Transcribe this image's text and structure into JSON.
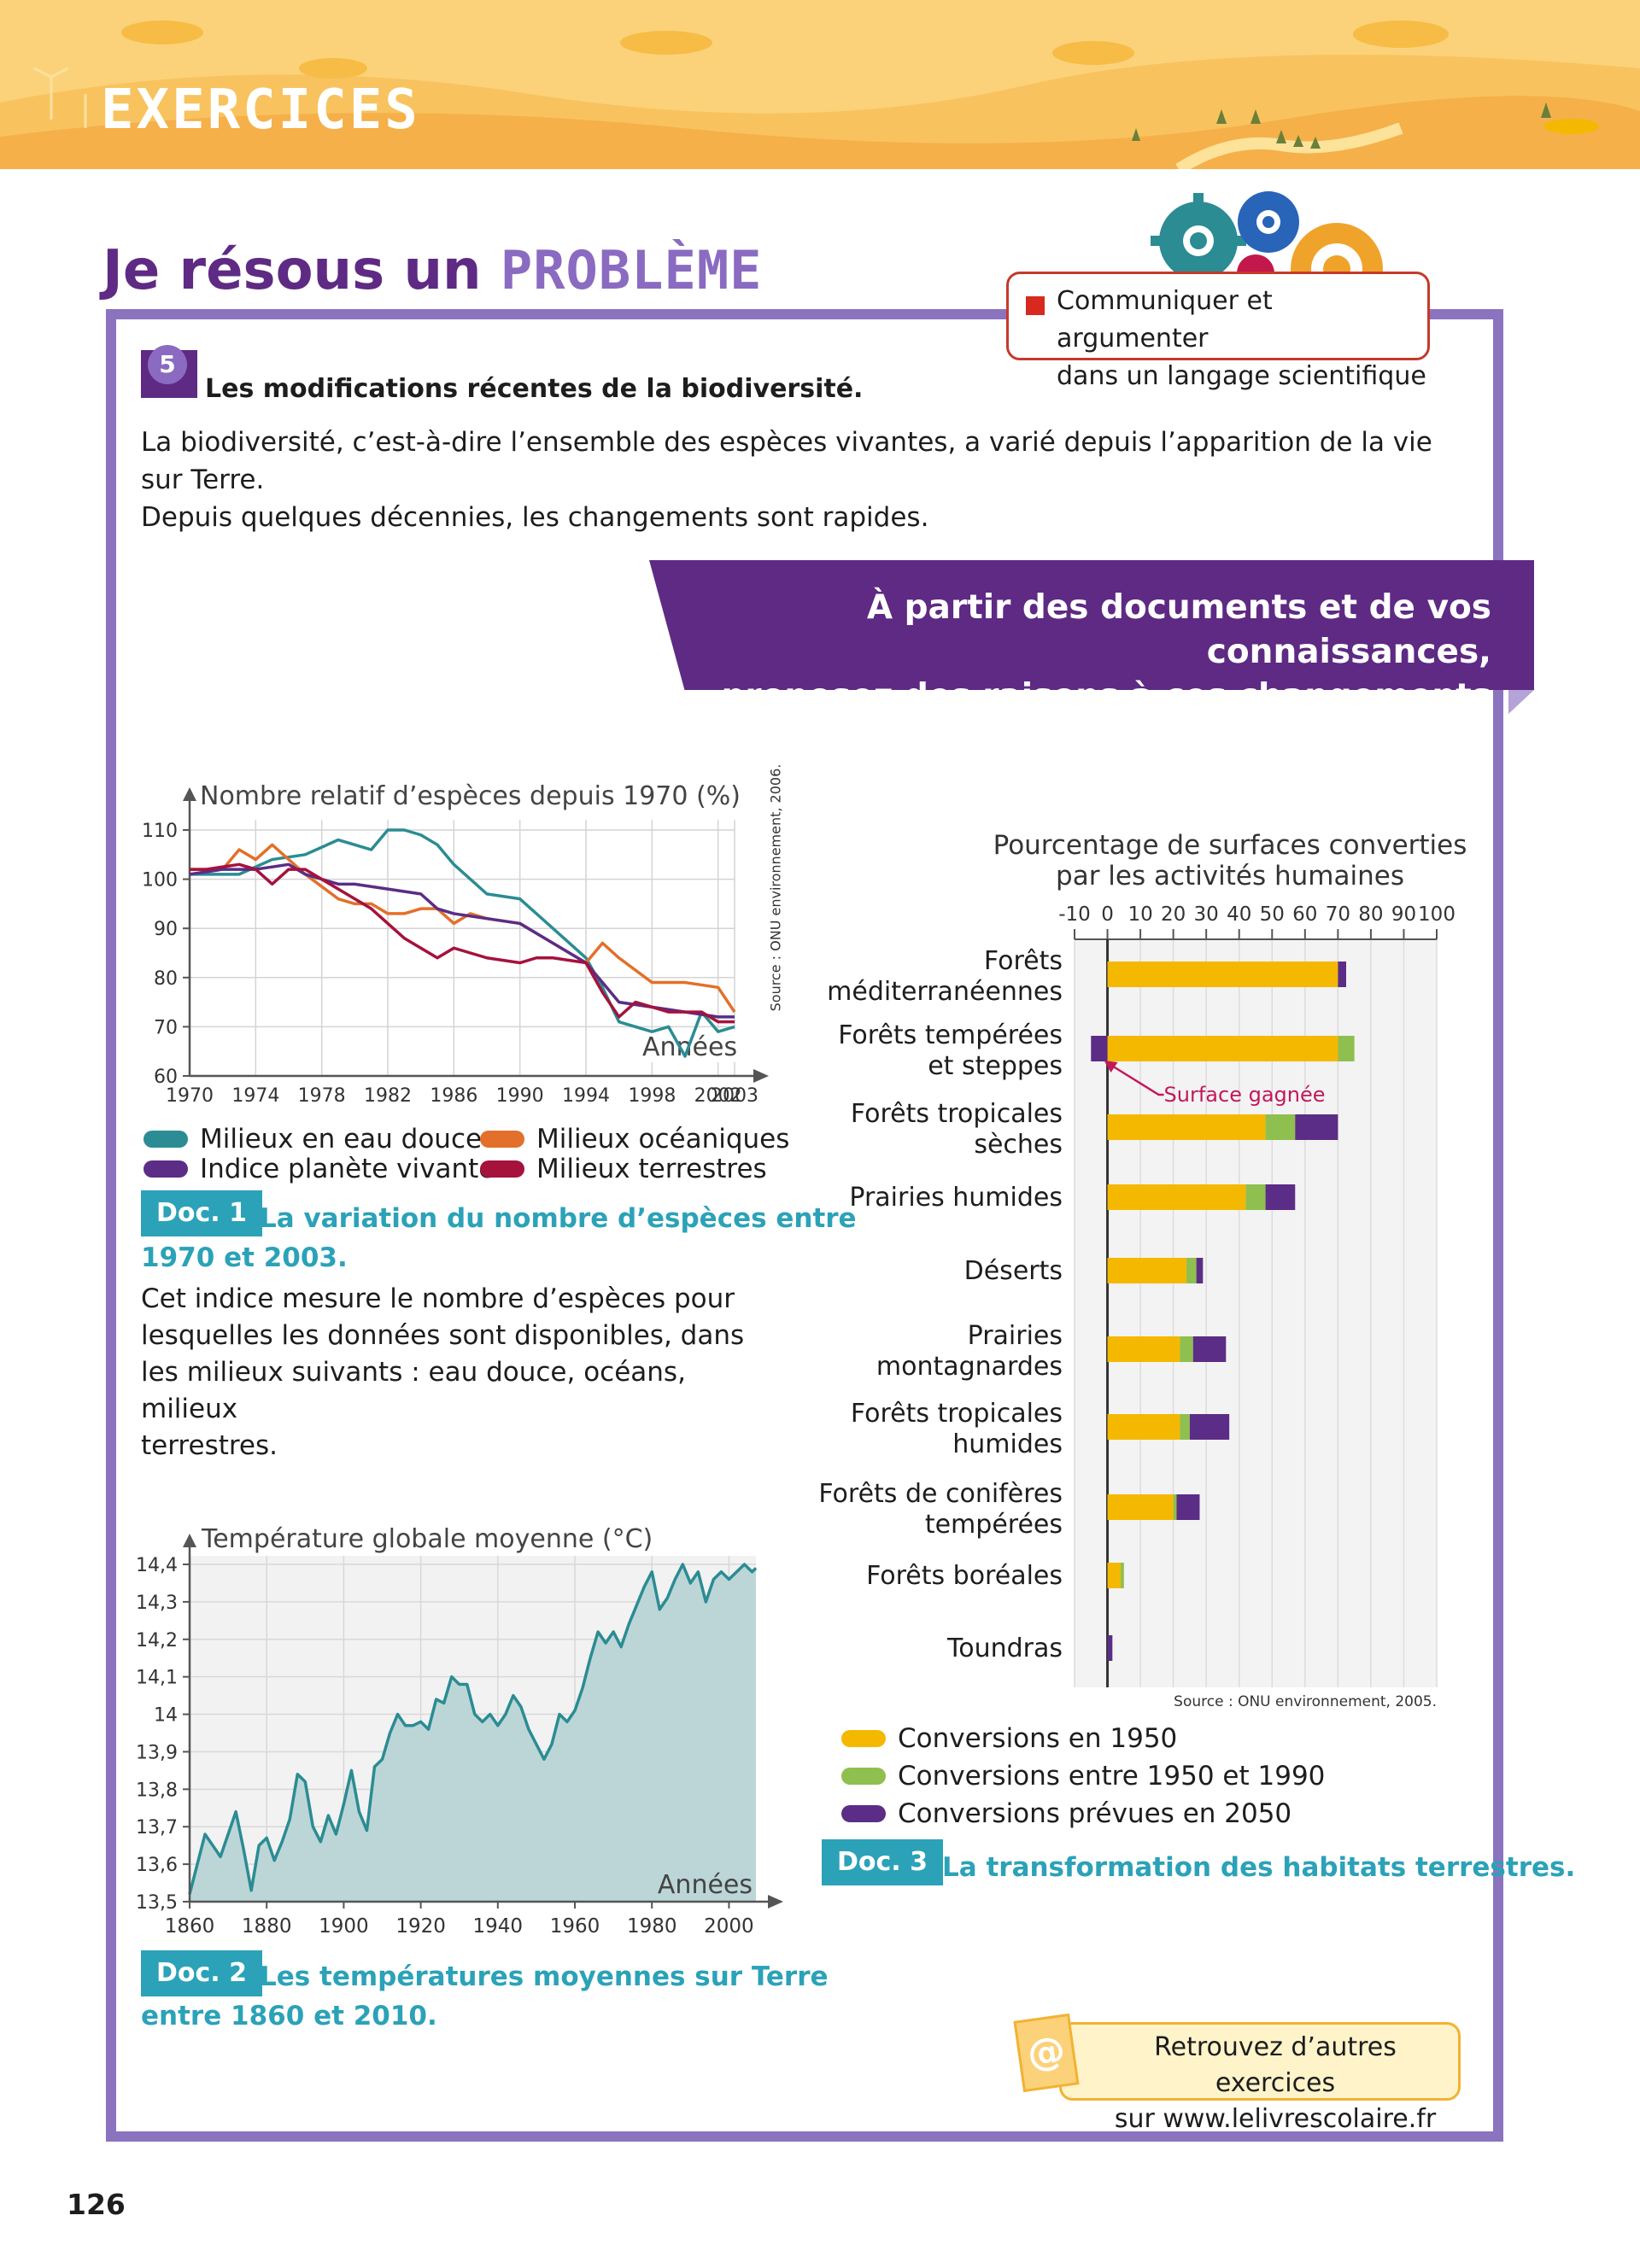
{
  "header": {
    "section": "EXERCICES"
  },
  "page_title": {
    "prefix": "Je résous un",
    "highlight": "PROBLÈME"
  },
  "skill": {
    "line1": "Communiquer et argumenter",
    "line2": "dans un langage scientifique"
  },
  "exercise": {
    "number": "5",
    "title": "Les modifications récentes de la biodiversité.",
    "intro_line1": "La biodiversité, c’est-à-dire l’ensemble des espèces vivantes, a varié depuis l’apparition de la vie sur Terre.",
    "intro_line2": "Depuis quelques décennies, les changements sont rapides."
  },
  "task": {
    "line1": "À partir des documents et de vos connaissances,",
    "line2": "proposez des raisons à ces changements récents."
  },
  "doc1": {
    "label": "Doc. 1",
    "title_line1": "La variation du nombre d’espèces entre",
    "title_line2": "1970 et 2003.",
    "text_lines": [
      "Cet indice mesure le nombre d’espèces pour",
      "lesquelles les données sont disponibles, dans",
      "les milieux suivants : eau douce, océans, milieux",
      "terrestres."
    ],
    "source": "Source : ONU environnement, 2006."
  },
  "doc2": {
    "label": "Doc. 2",
    "title_line1": "Les températures moyennes sur Terre",
    "title_line2": "entre 1860 et 2010."
  },
  "doc3": {
    "label": "Doc. 3",
    "title": "La transformation des habitats terrestres.",
    "source": "Source : ONU environnement, 2005.",
    "annotation": "Surface gagnée"
  },
  "web": {
    "line1": "Retrouvez d’autres exercices",
    "line2": "sur www.lelivrescolaire.fr",
    "icon": "at-icon"
  },
  "page_number": "126",
  "chart_data": [
    {
      "type": "line",
      "ylabel": "Nombre relatif d’espèces depuis 1970 (%)",
      "xlabel": "Années",
      "x_ticks": [
        "1970",
        "1974",
        "1978",
        "1982",
        "1986",
        "1990",
        "1994",
        "1998",
        "2002",
        "2003"
      ],
      "y_ticks": [
        "60",
        "70",
        "80",
        "90",
        "100",
        "110"
      ],
      "ylim": [
        60,
        110
      ],
      "grid": true,
      "legend_position": "bottom",
      "series": [
        {
          "name": "Milieux en eau douce",
          "color": "#2b8c93",
          "x": [
            1970,
            1973,
            1975,
            1977,
            1979,
            1981,
            1982,
            1983,
            1984,
            1985,
            1986,
            1988,
            1990,
            1992,
            1994,
            1995,
            1996,
            1998,
            1999,
            2000,
            2001,
            2002,
            2003
          ],
          "y": [
            101,
            101,
            104,
            105,
            108,
            106,
            110,
            110,
            109,
            107,
            103,
            97,
            96,
            90,
            84,
            78,
            71,
            69,
            70,
            64,
            73,
            69,
            70
          ]
        },
        {
          "name": "Milieux océaniques",
          "color": "#e2702a",
          "x": [
            1970,
            1972,
            1973,
            1974,
            1975,
            1976,
            1977,
            1979,
            1980,
            1981,
            1982,
            1983,
            1984,
            1985,
            1986,
            1987,
            1988,
            1990,
            1992,
            1994,
            1995,
            1996,
            1998,
            2000,
            2002,
            2003
          ],
          "y": [
            102,
            102,
            106,
            104,
            107,
            104,
            101,
            96,
            95,
            95,
            93,
            93,
            94,
            94,
            91,
            93,
            92,
            91,
            87,
            83,
            87,
            84,
            79,
            79,
            78,
            73
          ]
        },
        {
          "name": "Indice planète vivante",
          "color": "#5b2d86",
          "x": [
            1970,
            1972,
            1974,
            1976,
            1977,
            1979,
            1980,
            1982,
            1984,
            1985,
            1986,
            1988,
            1990,
            1992,
            1994,
            1995,
            1996,
            1998,
            2000,
            2002,
            2003
          ],
          "y": [
            101,
            102,
            102,
            103,
            101,
            99,
            99,
            98,
            97,
            94,
            93,
            92,
            91,
            87,
            83,
            79,
            75,
            74,
            73,
            72,
            72
          ]
        },
        {
          "name": "Milieux terrestres",
          "color": "#a5123c",
          "x": [
            1970,
            1971,
            1973,
            1974,
            1975,
            1976,
            1977,
            1979,
            1981,
            1983,
            1985,
            1986,
            1988,
            1990,
            1991,
            1992,
            1994,
            1995,
            1996,
            1997,
            1998,
            1999,
            2001,
            2002,
            2003
          ],
          "y": [
            102,
            102,
            103,
            102,
            99,
            102,
            102,
            98,
            94,
            88,
            84,
            86,
            84,
            83,
            84,
            84,
            83,
            77,
            72,
            75,
            74,
            73,
            73,
            71,
            71
          ]
        }
      ]
    },
    {
      "type": "area",
      "ylabel": "Température globale moyenne (°C)",
      "xlabel": "Années",
      "x_ticks": [
        "1860",
        "1880",
        "1900",
        "1920",
        "1940",
        "1960",
        "1980",
        "2000"
      ],
      "y_ticks": [
        "13,5",
        "13,6",
        "13,7",
        "13,8",
        "13,9",
        "14",
        "14,1",
        "14,2",
        "14,3",
        "14,4"
      ],
      "ylim": [
        13.5,
        14.4
      ],
      "xlim": [
        1860,
        2007
      ],
      "grid": true,
      "series": [
        {
          "color": "#2b8c93",
          "x": [
            1860,
            1862,
            1864,
            1866,
            1868,
            1870,
            1872,
            1874,
            1876,
            1878,
            1880,
            1882,
            1884,
            1886,
            1888,
            1890,
            1892,
            1894,
            1896,
            1898,
            1900,
            1902,
            1904,
            1906,
            1908,
            1910,
            1912,
            1914,
            1916,
            1918,
            1920,
            1922,
            1924,
            1926,
            1928,
            1930,
            1932,
            1934,
            1936,
            1938,
            1940,
            1942,
            1944,
            1946,
            1948,
            1950,
            1952,
            1954,
            1956,
            1958,
            1960,
            1962,
            1964,
            1966,
            1968,
            1970,
            1972,
            1974,
            1976,
            1978,
            1980,
            1982,
            1984,
            1986,
            1988,
            1990,
            1992,
            1994,
            1996,
            1998,
            2000,
            2002,
            2004,
            2006,
            2007
          ],
          "y": [
            13.52,
            13.6,
            13.68,
            13.65,
            13.62,
            13.68,
            13.74,
            13.64,
            13.53,
            13.65,
            13.67,
            13.61,
            13.66,
            13.72,
            13.84,
            13.82,
            13.7,
            13.66,
            13.73,
            13.68,
            13.76,
            13.85,
            13.74,
            13.69,
            13.86,
            13.88,
            13.95,
            14.0,
            13.97,
            13.97,
            13.98,
            13.96,
            14.04,
            14.03,
            14.1,
            14.08,
            14.08,
            14.0,
            13.98,
            14.0,
            13.97,
            14.0,
            14.05,
            14.02,
            13.96,
            13.92,
            13.88,
            13.92,
            14.0,
            13.98,
            14.01,
            14.07,
            14.15,
            14.22,
            14.19,
            14.22,
            14.18,
            14.24,
            14.29,
            14.34,
            14.38,
            14.28,
            14.31,
            14.36,
            14.4,
            14.35,
            14.38,
            14.3,
            14.36,
            14.38,
            14.36,
            14.38,
            14.4,
            14.38,
            14.39
          ]
        }
      ]
    },
    {
      "type": "bar",
      "orientation": "horizontal",
      "stacked": true,
      "title_line1": "Pourcentage de surfaces converties",
      "title_line2": "par les activités humaines",
      "x_ticks": [
        "-10",
        "0",
        "10",
        "20",
        "30",
        "40",
        "50",
        "60",
        "70",
        "80",
        "90",
        "100"
      ],
      "xlim": [
        -10,
        100
      ],
      "grid": true,
      "legend_position": "bottom",
      "categories": [
        {
          "line1": "Forêts",
          "line2": "méditerranéennes"
        },
        {
          "line1": "Forêts tempérées",
          "line2": "et steppes"
        },
        {
          "line1": "Forêts tropicales",
          "line2": "sèches"
        },
        {
          "line1": "Prairies humides",
          "line2": ""
        },
        {
          "line1": "Déserts",
          "line2": ""
        },
        {
          "line1": "Prairies",
          "line2": "montagnardes"
        },
        {
          "line1": "Forêts tropicales",
          "line2": "humides"
        },
        {
          "line1": "Forêts de conifères",
          "line2": "tempérées"
        },
        {
          "line1": "Forêts boréales",
          "line2": ""
        },
        {
          "line1": "Toundras",
          "line2": ""
        }
      ],
      "series": [
        {
          "name": "Conversions en 1950",
          "color": "#f5b800",
          "values": [
            70,
            70,
            48,
            42,
            24,
            22,
            22,
            20,
            4,
            0
          ]
        },
        {
          "name": "Conversions entre 1950 et 1990",
          "color": "#8fbf4f",
          "values": [
            0,
            5,
            9,
            6,
            3,
            4,
            3,
            1,
            1,
            0
          ]
        },
        {
          "name": "Conversions prévues en 2050",
          "color": "#5b2d86",
          "values": [
            2.5,
            -5,
            13,
            9,
            2,
            10,
            12,
            7,
            0,
            1.5
          ]
        }
      ]
    }
  ]
}
